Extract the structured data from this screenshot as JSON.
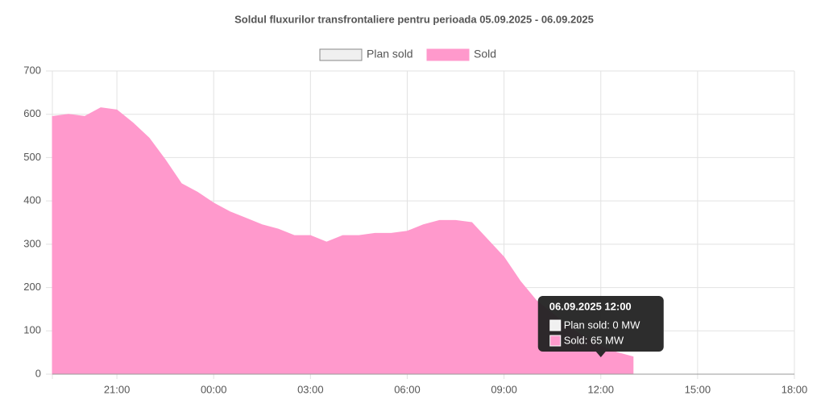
{
  "chart_data": {
    "type": "area",
    "title": "Soldul fluxurilor transfrontaliere  pentru perioada 05.09.2025 - 06.09.2025",
    "categories": [
      null,
      null,
      null,
      null,
      "21:00",
      null,
      null,
      null,
      null,
      null,
      "00:00",
      null,
      null,
      null,
      null,
      null,
      "03:00",
      null,
      null,
      null,
      null,
      null,
      "06:00",
      null,
      null,
      null,
      null,
      null,
      "09:00",
      null,
      null,
      null,
      null,
      null,
      "12:00",
      null,
      null,
      null,
      null,
      null,
      "15:00",
      null,
      null,
      null,
      null,
      null,
      "18:00"
    ],
    "series": [
      {
        "name": "Plan sold",
        "color": "#f0f0f0",
        "border": "#888888",
        "values": [
          0,
          0,
          0,
          0,
          0,
          0,
          0,
          0,
          0,
          0,
          0,
          0,
          0,
          0,
          0,
          0,
          0,
          0,
          0,
          0,
          0,
          0,
          0,
          0,
          0,
          0,
          0,
          0,
          0,
          0,
          0,
          0,
          0,
          0,
          0,
          0,
          0,
          null,
          null,
          null,
          null,
          null,
          null,
          null,
          null,
          null,
          null
        ]
      },
      {
        "name": "Sold",
        "color": "#ff99cc",
        "border": "#ff99cc",
        "values": [
          595,
          600,
          595,
          615,
          610,
          580,
          545,
          495,
          440,
          420,
          395,
          375,
          360,
          345,
          335,
          320,
          320,
          305,
          320,
          320,
          325,
          325,
          330,
          345,
          355,
          355,
          350,
          310,
          270,
          215,
          170,
          140,
          110,
          85,
          65,
          50,
          40,
          null,
          null,
          null,
          null,
          null,
          null,
          null,
          null,
          null,
          null
        ]
      }
    ],
    "ylim": [
      0,
      700
    ],
    "yticks": [
      0,
      100,
      200,
      300,
      400,
      500,
      600,
      700
    ],
    "grid": true,
    "tooltip": {
      "title": "06.09.2025 12:00",
      "lines": [
        "Plan sold: 0 MW",
        "Sold: 65 MW"
      ],
      "index": 34
    }
  }
}
